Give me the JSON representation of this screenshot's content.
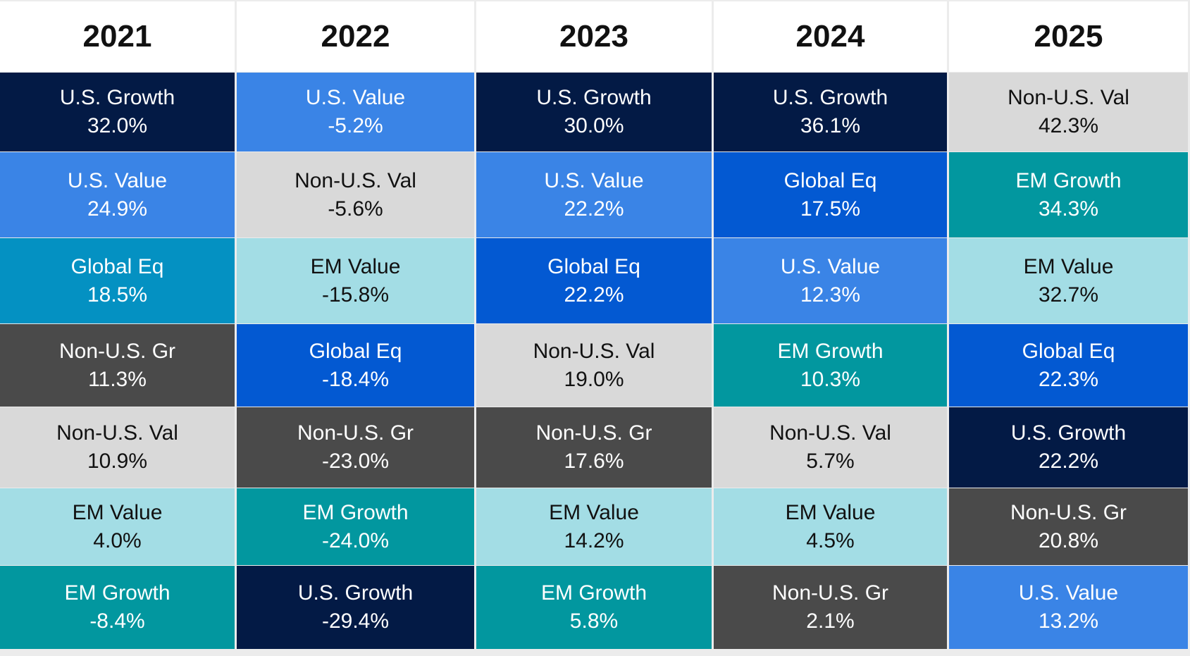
{
  "colors": {
    "U.S. Growth": "#031a45",
    "U.S. Value": "#3a84e6",
    "Global Eq": "#0359d2",
    "Non-U.S. Val": "#d9d9d9",
    "Non-U.S. Gr": "#4a4a4a",
    "EM Value": "#a3dde5",
    "EM Growth": "#02979f",
    "Global Eq 2021": "#0491c2"
  },
  "text_colors": {
    "light": "#ffffff",
    "dark": "#111111"
  },
  "chart_data": {
    "type": "table",
    "columns": [
      "2021",
      "2022",
      "2023",
      "2024",
      "2025"
    ],
    "cells": [
      [
        {
          "label": "U.S. Growth",
          "value": "32.0%"
        },
        {
          "label": "U.S. Value",
          "value": "24.9%"
        },
        {
          "label": "Global Eq",
          "value": "18.5%"
        },
        {
          "label": "Non-U.S. Gr",
          "value": "11.3%"
        },
        {
          "label": "Non-U.S. Val",
          "value": "10.9%"
        },
        {
          "label": "EM Value",
          "value": "4.0%"
        },
        {
          "label": "EM Growth",
          "value": "-8.4%"
        }
      ],
      [
        {
          "label": "U.S. Value",
          "value": "-5.2%"
        },
        {
          "label": "Non-U.S. Val",
          "value": "-5.6%"
        },
        {
          "label": "EM Value",
          "value": "-15.8%"
        },
        {
          "label": "Global Eq",
          "value": "-18.4%"
        },
        {
          "label": "Non-U.S. Gr",
          "value": "-23.0%"
        },
        {
          "label": "EM Growth",
          "value": "-24.0%"
        },
        {
          "label": "U.S. Growth",
          "value": "-29.4%"
        }
      ],
      [
        {
          "label": "U.S. Growth",
          "value": "30.0%"
        },
        {
          "label": "U.S. Value",
          "value": "22.2%"
        },
        {
          "label": "Global Eq",
          "value": "22.2%"
        },
        {
          "label": "Non-U.S. Val",
          "value": "19.0%"
        },
        {
          "label": "Non-U.S. Gr",
          "value": "17.6%"
        },
        {
          "label": "EM Value",
          "value": "14.2%"
        },
        {
          "label": "EM Growth",
          "value": "5.8%"
        }
      ],
      [
        {
          "label": "U.S. Growth",
          "value": "36.1%"
        },
        {
          "label": "Global Eq",
          "value": "17.5%"
        },
        {
          "label": "U.S. Value",
          "value": "12.3%"
        },
        {
          "label": "EM Growth",
          "value": "10.3%"
        },
        {
          "label": "Non-U.S. Val",
          "value": "5.7%"
        },
        {
          "label": "EM Value",
          "value": "4.5%"
        },
        {
          "label": "Non-U.S. Gr",
          "value": "2.1%"
        }
      ],
      [
        {
          "label": "Non-U.S. Val",
          "value": "42.3%"
        },
        {
          "label": "EM Growth",
          "value": "34.3%"
        },
        {
          "label": "EM Value",
          "value": "32.7%"
        },
        {
          "label": "Global Eq",
          "value": "22.3%"
        },
        {
          "label": "U.S. Growth",
          "value": "22.2%"
        },
        {
          "label": "Non-U.S. Gr",
          "value": "20.8%"
        },
        {
          "label": "U.S. Value",
          "value": "13.2%"
        }
      ]
    ]
  }
}
